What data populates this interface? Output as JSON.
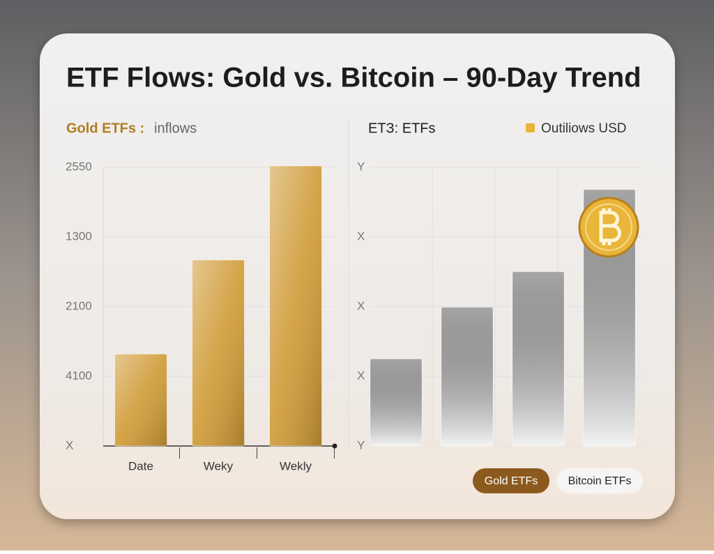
{
  "title": "ETF Flows: Gold vs. Bitcoin – 90-Day Trend",
  "chart_data": [
    {
      "type": "bar",
      "subtitle": "Gold ETFs :",
      "note": "inflows",
      "categories": [
        "Date",
        "Weky",
        "Wekly"
      ],
      "values": [
        1.32,
        2.67,
        4.02
      ],
      "color": "#cf9a35",
      "ylim": [
        0,
        4
      ],
      "yticks": [
        {
          "value": 4,
          "label": "2550"
        },
        {
          "value": 3,
          "label": "1300"
        },
        {
          "value": 2,
          "label": "2100"
        },
        {
          "value": 1,
          "label": "4100"
        },
        {
          "value": 0,
          "label": "X"
        }
      ],
      "grid": true
    },
    {
      "type": "bar",
      "subtitle": "ETЗ: ETFs",
      "series": [
        {
          "name": "Outiliows USD",
          "color": "#e9b53a",
          "values": [
            1.25,
            1.99,
            2.5,
            3.68
          ]
        }
      ],
      "bar_color": "#c2c2c2",
      "ylim": [
        0,
        4
      ],
      "yticks": [
        {
          "value": 4,
          "label": "Y"
        },
        {
          "value": 3,
          "label": "X"
        },
        {
          "value": 2,
          "label": "X"
        },
        {
          "value": 1,
          "label": "X"
        },
        {
          "value": 0,
          "label": "Y"
        }
      ],
      "grid": true
    }
  ],
  "buttons": [
    "Gold ETFs",
    "Bitcoin ETFs"
  ]
}
